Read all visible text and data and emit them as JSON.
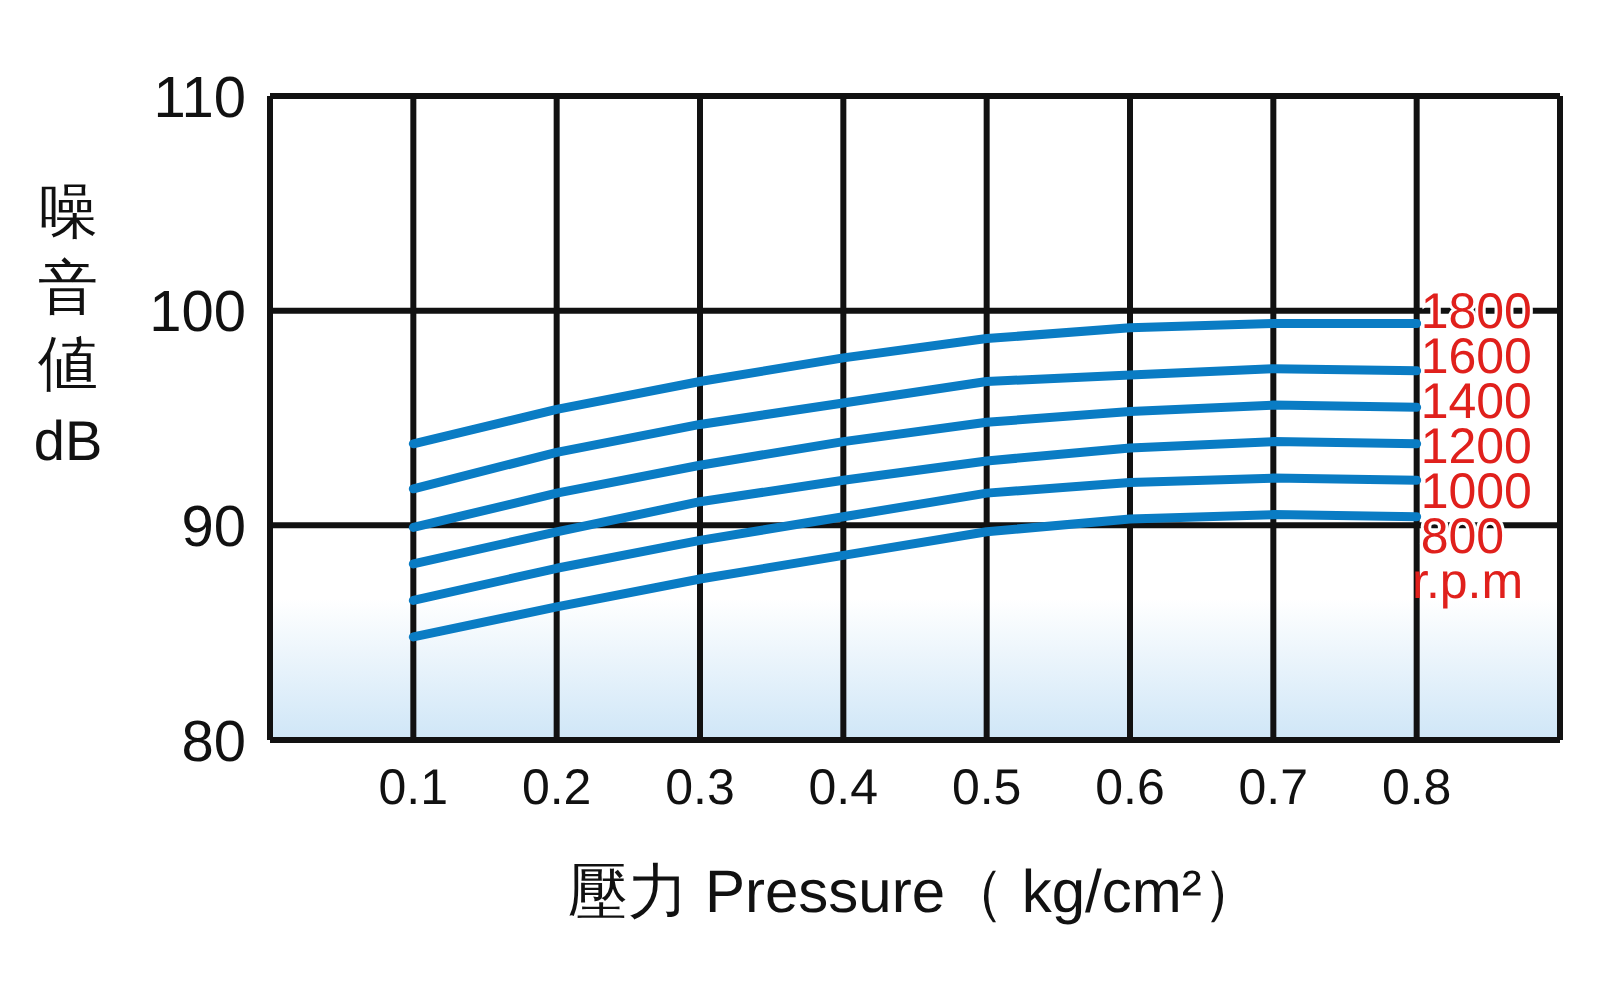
{
  "chart_data": {
    "type": "line",
    "xlabel": "壓力 Pressure（ kg/cm²）",
    "ylabel": "噪音値 dB",
    "x": [
      0.1,
      0.2,
      0.3,
      0.4,
      0.5,
      0.6,
      0.7,
      0.8
    ],
    "xlim": [
      0,
      0.9
    ],
    "xticks": [
      0.1,
      0.2,
      0.3,
      0.4,
      0.5,
      0.6,
      0.7,
      0.8
    ],
    "ylim": [
      80,
      110
    ],
    "yticks": [
      80,
      90,
      100,
      110
    ],
    "grid": true,
    "marker": "none",
    "line_style": "solid",
    "annotations": [
      "r.p.m"
    ],
    "series": [
      {
        "name": "1800",
        "color": "#0a7cc4",
        "values": [
          93.8,
          95.4,
          96.7,
          97.8,
          98.7,
          99.2,
          99.4,
          99.4
        ]
      },
      {
        "name": "1600",
        "color": "#0a7cc4",
        "values": [
          91.7,
          93.4,
          94.7,
          95.7,
          96.7,
          97.0,
          97.3,
          97.2
        ]
      },
      {
        "name": "1400",
        "color": "#0a7cc4",
        "values": [
          89.9,
          91.5,
          92.8,
          93.9,
          94.8,
          95.3,
          95.6,
          95.5
        ]
      },
      {
        "name": "1200",
        "color": "#0a7cc4",
        "values": [
          88.2,
          89.7,
          91.1,
          92.1,
          93.0,
          93.6,
          93.9,
          93.8
        ]
      },
      {
        "name": "1000",
        "color": "#0a7cc4",
        "values": [
          86.5,
          88.0,
          89.3,
          90.4,
          91.5,
          92.0,
          92.2,
          92.1
        ]
      },
      {
        "name": "800",
        "color": "#0a7cc4",
        "values": [
          84.8,
          86.2,
          87.5,
          88.6,
          89.7,
          90.3,
          90.5,
          90.4
        ]
      }
    ]
  }
}
